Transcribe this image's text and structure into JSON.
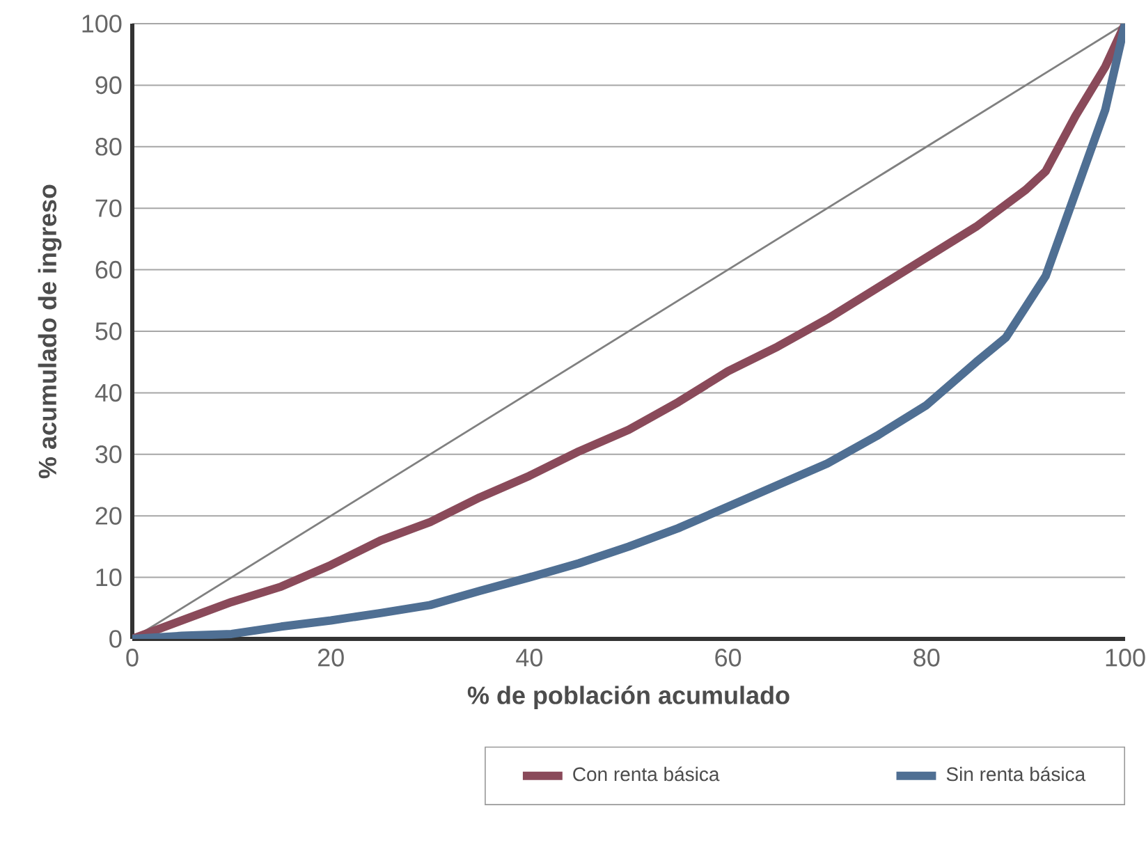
{
  "chart_data": {
    "type": "line",
    "xlabel": "% de población acumulado",
    "ylabel": "% acumulado de ingreso",
    "xlim": [
      0,
      100
    ],
    "ylim": [
      0,
      100
    ],
    "xticks": [
      0,
      20,
      40,
      60,
      80,
      100
    ],
    "yticks": [
      0,
      10,
      20,
      30,
      40,
      50,
      60,
      70,
      80,
      90,
      100
    ],
    "grid": "y",
    "legend": "bottom",
    "marker": "none",
    "series": [
      {
        "name": "Con renta básica",
        "color": "#8a4a5a",
        "x": [
          0,
          5,
          10,
          15,
          20,
          25,
          30,
          35,
          40,
          45,
          50,
          55,
          60,
          65,
          70,
          75,
          80,
          85,
          90,
          92,
          95,
          98,
          100
        ],
        "values": [
          0,
          3,
          6,
          8.5,
          12,
          16,
          19,
          23,
          26.5,
          30.5,
          34,
          38.5,
          43.5,
          47.5,
          52,
          57,
          62,
          67,
          73,
          76,
          85,
          93,
          100
        ]
      },
      {
        "name": "Sin renta básica",
        "color": "#4f6f93",
        "x": [
          0,
          5,
          10,
          15,
          20,
          25,
          30,
          35,
          40,
          45,
          50,
          55,
          60,
          65,
          70,
          75,
          80,
          85,
          88,
          90,
          92,
          94,
          96,
          98,
          100
        ],
        "values": [
          0,
          0.5,
          0.8,
          2,
          3,
          4.2,
          5.5,
          7.8,
          10,
          12.3,
          15,
          18,
          21.5,
          25,
          28.5,
          33,
          38,
          45,
          49,
          54,
          59,
          68,
          77,
          86,
          100
        ]
      },
      {
        "color": "#808080",
        "x": [
          0,
          100
        ],
        "values": [
          0,
          100
        ]
      }
    ]
  }
}
